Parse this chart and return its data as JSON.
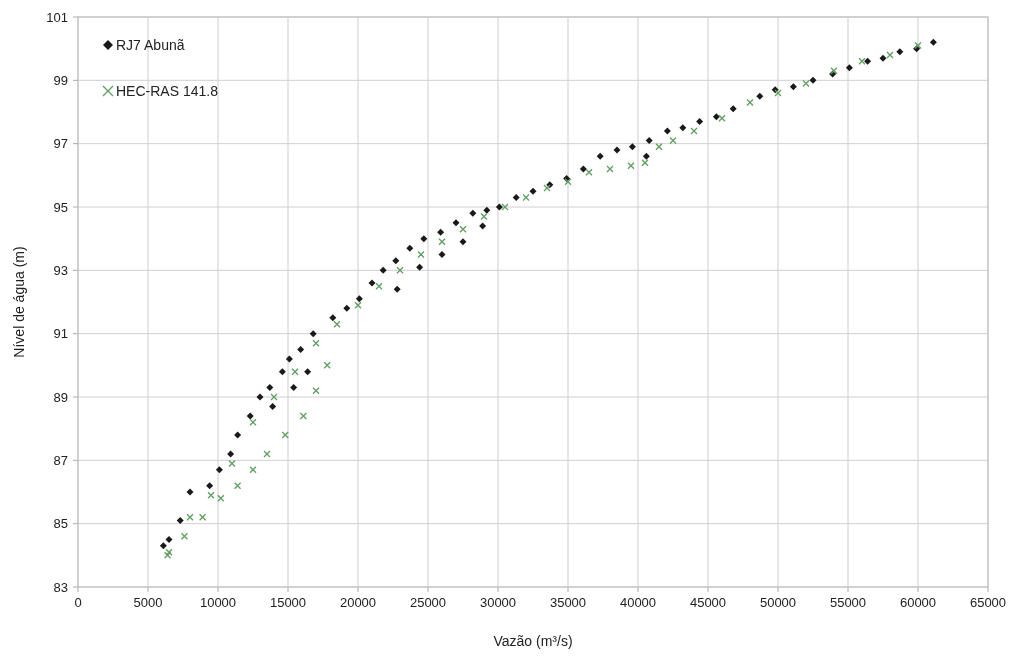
{
  "chart_data": {
    "type": "scatter",
    "xlabel": "Vazão (m³/s)",
    "ylabel": "Nível de água (m)",
    "xlim": [
      0,
      65000
    ],
    "ylim": [
      83,
      101
    ],
    "xticks": [
      0,
      5000,
      10000,
      15000,
      20000,
      25000,
      30000,
      35000,
      40000,
      45000,
      50000,
      55000,
      60000,
      65000
    ],
    "yticks": [
      83,
      85,
      87,
      89,
      91,
      93,
      95,
      97,
      99,
      101
    ],
    "grid": true,
    "legend": "top left",
    "series": [
      {
        "name": "RJ7 Abunã",
        "color": "#1a1a1a",
        "marker": "diamond",
        "x": [
          6100,
          6500,
          7300,
          8000,
          9400,
          10100,
          10900,
          11400,
          12300,
          13000,
          13700,
          14600,
          15100,
          15900,
          16800,
          18200,
          19200,
          20100,
          21000,
          21800,
          22700,
          23700,
          24700,
          25900,
          27000,
          28200,
          29200,
          30100,
          31300,
          32500,
          33700,
          34900,
          36100,
          37300,
          38500,
          39600,
          40800,
          42100,
          43200,
          44400,
          45600,
          46800,
          48700,
          49800,
          51100,
          52500,
          53900,
          55100,
          56400,
          57500,
          58700,
          59900,
          61100,
          13900,
          15400,
          16400,
          22800,
          24400,
          26000,
          27500,
          28900,
          40600
        ],
        "values": [
          84.3,
          84.5,
          85.1,
          86.0,
          86.2,
          86.7,
          87.2,
          87.8,
          88.4,
          89.0,
          89.3,
          89.8,
          90.2,
          90.5,
          91.0,
          91.5,
          91.8,
          92.1,
          92.6,
          93.0,
          93.3,
          93.7,
          94.0,
          94.2,
          94.5,
          94.8,
          94.9,
          95.0,
          95.3,
          95.5,
          95.7,
          95.9,
          96.2,
          96.6,
          96.8,
          96.9,
          97.1,
          97.4,
          97.5,
          97.7,
          97.85,
          98.1,
          98.5,
          98.7,
          98.8,
          99.0,
          99.2,
          99.4,
          99.6,
          99.7,
          99.9,
          100.0,
          100.2,
          88.7,
          89.3,
          89.8,
          92.4,
          93.1,
          93.5,
          93.9,
          94.4,
          96.6
        ]
      },
      {
        "name": "HEC-RAS 141.8",
        "color": "#5f9e5f",
        "marker": "cross",
        "x": [
          6500,
          8000,
          9500,
          11000,
          12500,
          14000,
          15500,
          17000,
          18500,
          20000,
          21500,
          23000,
          24500,
          26000,
          27500,
          29000,
          30500,
          32000,
          33500,
          35000,
          36500,
          38000,
          39500,
          40500,
          41500,
          42500,
          44000,
          46000,
          48000,
          50000,
          52000,
          54000,
          56000,
          58000,
          60000,
          6400,
          7600,
          8900,
          10200,
          11400,
          12500,
          13500,
          14800,
          16100,
          17000,
          17800
        ],
        "values": [
          84.1,
          85.2,
          85.9,
          86.9,
          88.2,
          89.0,
          89.8,
          90.7,
          91.3,
          91.9,
          92.5,
          93.0,
          93.5,
          93.9,
          94.3,
          94.7,
          95.0,
          95.3,
          95.6,
          95.8,
          96.1,
          96.2,
          96.3,
          96.4,
          96.9,
          97.1,
          97.4,
          97.8,
          98.3,
          98.6,
          98.9,
          99.3,
          99.6,
          99.8,
          100.1,
          84.0,
          84.6,
          85.2,
          85.8,
          86.2,
          86.7,
          87.2,
          87.8,
          88.4,
          89.2,
          90.0
        ]
      }
    ]
  }
}
